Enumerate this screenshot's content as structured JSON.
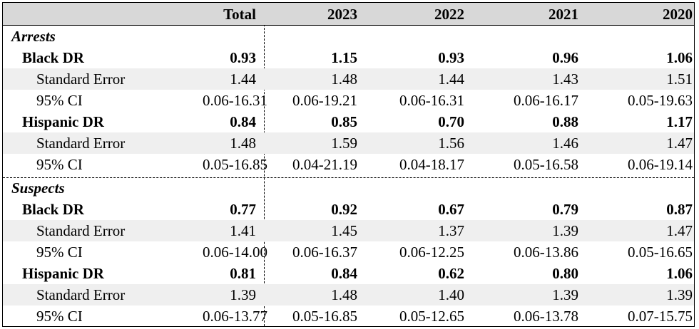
{
  "header": {
    "label": "",
    "cols": [
      "Total",
      "2023",
      "2022",
      "2021",
      "2020"
    ]
  },
  "sections": [
    {
      "title": "Arrests",
      "groups": [
        {
          "dr": {
            "label": "Black DR",
            "values": [
              "0.93",
              "1.15",
              "0.93",
              "0.96",
              "1.06"
            ]
          },
          "se": {
            "label": "Standard Error",
            "values": [
              "1.44",
              "1.48",
              "1.44",
              "1.43",
              "1.51"
            ]
          },
          "ci": {
            "label": "95% CI",
            "values": [
              "0.06-16.31",
              "0.06-19.21",
              "0.06-16.31",
              "0.06-16.17",
              "0.05-19.63"
            ]
          }
        },
        {
          "dr": {
            "label": "Hispanic DR",
            "values": [
              "0.84",
              "0.85",
              "0.70",
              "0.88",
              "1.17"
            ]
          },
          "se": {
            "label": "Standard Error",
            "values": [
              "1.48",
              "1.59",
              "1.56",
              "1.46",
              "1.47"
            ]
          },
          "ci": {
            "label": "95% CI",
            "values": [
              "0.05-16.85",
              "0.04-21.19",
              "0.04-18.17",
              "0.05-16.58",
              "0.06-19.14"
            ]
          }
        }
      ]
    },
    {
      "title": "Suspects",
      "groups": [
        {
          "dr": {
            "label": "Black DR",
            "values": [
              "0.77",
              "0.92",
              "0.67",
              "0.79",
              "0.87"
            ]
          },
          "se": {
            "label": "Standard Error",
            "values": [
              "1.41",
              "1.45",
              "1.37",
              "1.39",
              "1.47"
            ]
          },
          "ci": {
            "label": "95% CI",
            "values": [
              "0.06-14.00",
              "0.06-16.37",
              "0.06-12.25",
              "0.06-13.86",
              "0.05-16.65"
            ]
          }
        },
        {
          "dr": {
            "label": "Hispanic DR",
            "values": [
              "0.81",
              "0.84",
              "0.62",
              "0.80",
              "1.06"
            ]
          },
          "se": {
            "label": "Standard Error",
            "values": [
              "1.39",
              "1.48",
              "1.40",
              "1.39",
              "1.39"
            ]
          },
          "ci": {
            "label": "95% CI",
            "values": [
              "0.06-13.77",
              "0.05-16.85",
              "0.05-12.65",
              "0.06-13.78",
              "0.07-15.75"
            ]
          }
        }
      ]
    }
  ]
}
